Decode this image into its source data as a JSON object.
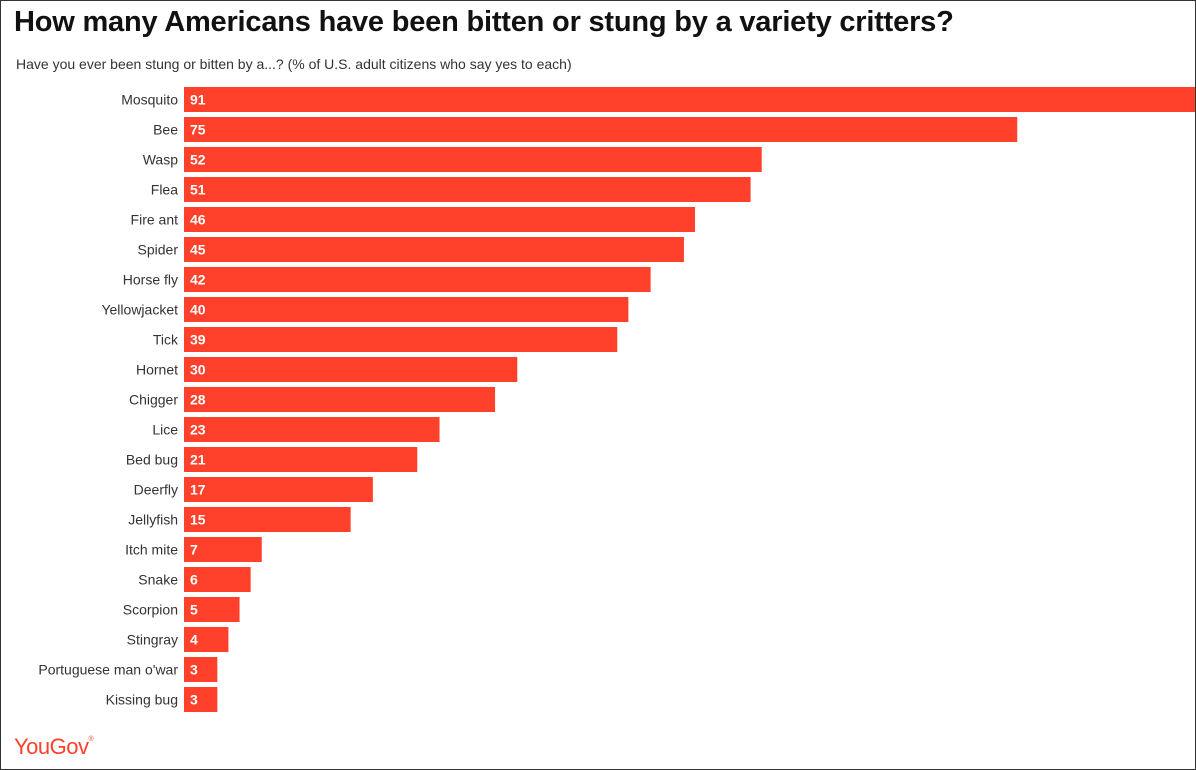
{
  "title": "How many Americans have been bitten or stung by a variety critters?",
  "subtitle": "Have you ever been stung or bitten by a...? (% of U.S. adult citizens who say yes to each)",
  "logo": {
    "text": "YouGov",
    "mark": "®"
  },
  "colors": {
    "bar": "#ff412c",
    "label": "#333333",
    "bar_text": "#ffffff"
  },
  "chart_data": {
    "type": "bar",
    "orientation": "horizontal",
    "categories": [
      "Mosquito",
      "Bee",
      "Wasp",
      "Flea",
      "Fire ant",
      "Spider",
      "Horse fly",
      "Yellowjacket",
      "Tick",
      "Hornet",
      "Chigger",
      "Lice",
      "Bed bug",
      "Deerfly",
      "Jellyfish",
      "Itch mite",
      "Snake",
      "Scorpion",
      "Stingray",
      "Portuguese man o'war",
      "Kissing bug"
    ],
    "values": [
      91,
      75,
      52,
      51,
      46,
      45,
      42,
      40,
      39,
      30,
      28,
      23,
      21,
      17,
      15,
      7,
      6,
      5,
      4,
      3,
      3
    ],
    "xlim": [
      0,
      91
    ],
    "grid": false,
    "legend": "none",
    "data_labels": "inside-start"
  }
}
